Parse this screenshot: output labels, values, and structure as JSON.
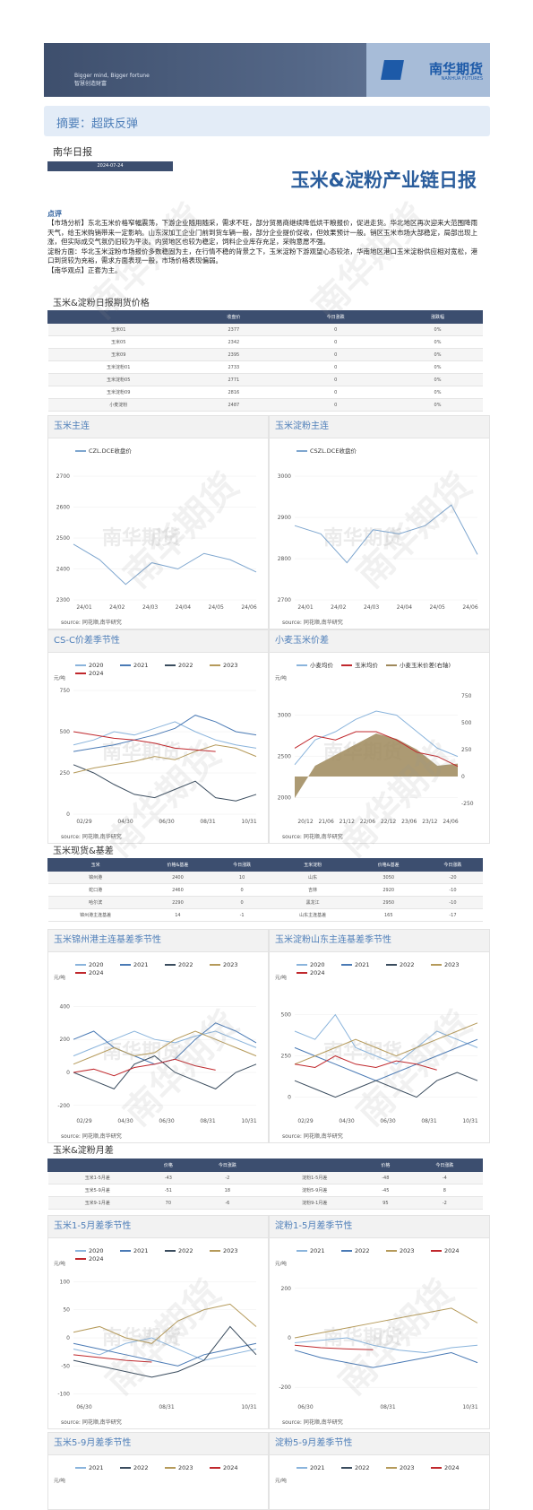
{
  "banner": {
    "slogan_en": "Bigger mind, Bigger fortune",
    "slogan_cn": "智慧创造财富",
    "logo_cn": "南华期货",
    "logo_en": "NANHUA FUTURES"
  },
  "summary": "摘要：超跌反弹",
  "daily_label": "南华日报",
  "date": "2024-07-24",
  "main_title": "玉米&淀粉产业链日报",
  "comment_head": "点评",
  "comment": "【市场分析】东北玉米价格窄幅震荡，下游企业随用随采，需求不旺，部分贸易商继续降低烘干粮报价，促进走货。华北地区再次迎来大范围降雨天气，给玉米购销带来一定影响。山东深加工企业门前到货车辆一般，部分企业提价促收，但效果预计一般。销区玉米市场大部稳定，局部出现上涨，但实际成交气氛仍旧较为平淡。内贸地区也较为稳定，饲料企业库存充足，采购意愿不强。\n淀粉方面：华北玉米淀粉市场报价多数稳固为主，在行情不稳的背景之下，玉米淀粉下游观望心态较浓，华南地区港口玉米淀粉供应相对宽松，港口到货较为充裕，需求方面表现一般，市场价格表现偏弱。\n【南华观点】正套为主。",
  "futures": {
    "title": "玉米&淀粉日报期货价格",
    "headers": [
      "",
      "收盘价",
      "今日涨跌",
      "涨跌幅"
    ],
    "rows": [
      [
        "玉米01",
        "2377",
        "0",
        "0%"
      ],
      [
        "玉米05",
        "2342",
        "0",
        "0%"
      ],
      [
        "玉米09",
        "2395",
        "0",
        "0%"
      ],
      [
        "玉米淀粉01",
        "2733",
        "0",
        "0%"
      ],
      [
        "玉米淀粉05",
        "2771",
        "0",
        "0%"
      ],
      [
        "玉米淀粉09",
        "2816",
        "0",
        "0%"
      ],
      [
        "小麦淀粉",
        "2487",
        "0",
        "0%"
      ]
    ]
  },
  "spot": {
    "title": "玉米现货&基差",
    "headers": [
      "玉米",
      "价格&基差",
      "今日涨跌",
      "玉米淀粉",
      "价格&基差",
      "今日涨跌"
    ],
    "rows": [
      [
        "锦州港",
        "2400",
        "10",
        "山东",
        "3050",
        "-20"
      ],
      [
        "蛇口港",
        "2460",
        "0",
        "吉林",
        "2920",
        "-10"
      ],
      [
        "哈尔滨",
        "2290",
        "0",
        "黑龙江",
        "2950",
        "-10"
      ],
      [
        "锦州港主连基差",
        "14",
        "-1",
        "山东主连基差",
        "165",
        "-17"
      ]
    ]
  },
  "spread_table": {
    "title": "玉米&淀粉月差",
    "headers": [
      "",
      "价格",
      "今日涨跌",
      "",
      "价格",
      "今日涨跌"
    ],
    "rows": [
      [
        "玉米1-5月差",
        "-43",
        "-2",
        "淀粉1-5月差",
        "-48",
        "-4"
      ],
      [
        "玉米5-9月差",
        "-51",
        "18",
        "淀粉5-9月差",
        "-45",
        "8"
      ],
      [
        "玉米9-1月差",
        "70",
        "-6",
        "淀粉9-1月差",
        "95",
        "-2"
      ]
    ]
  },
  "source": "source: 同花顺,南华研究",
  "watermark": "南华期货",
  "panels": {
    "p1": {
      "title": "玉米主连"
    },
    "p2": {
      "title": "玉米淀粉主连"
    },
    "p3": {
      "title": "CS-C价差季节性"
    },
    "p4": {
      "title": "小麦玉米价差"
    },
    "p5": {
      "title": "玉米锦州港主连基差季节性"
    },
    "p6": {
      "title": "玉米淀粉山东主连基差季节性"
    },
    "p7": {
      "title": "玉米1-5月差季节性"
    },
    "p8": {
      "title": "淀粉1-5月差季节性"
    },
    "p9": {
      "title": "玉米5-9月差季节性"
    },
    "p10": {
      "title": "淀粉5-9月差季节性"
    }
  },
  "chart_data": [
    {
      "type": "line",
      "id": "p1",
      "series": [
        {
          "name": "CZL.DCE收盘价",
          "color": "#7ea6cf",
          "x": [
            "23/12",
            "24/01",
            "24/02",
            "24/03",
            "24/04",
            "24/05",
            "24/06",
            "24/07"
          ],
          "values": [
            2480,
            2430,
            2350,
            2420,
            2400,
            2450,
            2430,
            2390
          ]
        }
      ],
      "ylim": [
        2300,
        2700
      ],
      "yticks": [
        2300,
        2400,
        2500,
        2600,
        2700
      ],
      "xticks": [
        "24/01",
        "24/02",
        "24/03",
        "24/04",
        "24/05",
        "24/06"
      ]
    },
    {
      "type": "line",
      "id": "p2",
      "series": [
        {
          "name": "CSZL.DCE收盘价",
          "color": "#7ea6cf",
          "x": [
            "23/12",
            "24/01",
            "24/02",
            "24/03",
            "24/04",
            "24/05",
            "24/06",
            "24/07"
          ],
          "values": [
            2880,
            2860,
            2790,
            2870,
            2860,
            2880,
            2930,
            2810
          ]
        }
      ],
      "ylim": [
        2700,
        3000
      ],
      "yticks": [
        2700,
        2800,
        2900,
        3000
      ],
      "xticks": [
        "24/01",
        "24/02",
        "24/03",
        "24/04",
        "24/05",
        "24/06"
      ]
    },
    {
      "type": "line",
      "id": "p3",
      "ylabel": "元/吨",
      "ylim": [
        0,
        750
      ],
      "yticks": [
        0,
        250,
        500,
        750
      ],
      "xticks": [
        "02/29",
        "04/30",
        "06/30",
        "08/31",
        "10/31"
      ],
      "series": [
        {
          "name": "2020",
          "color": "#8ab4dc",
          "values": [
            420,
            450,
            500,
            480,
            520,
            560,
            500,
            450,
            420,
            400
          ]
        },
        {
          "name": "2021",
          "color": "#4a7ab5",
          "values": [
            380,
            400,
            420,
            450,
            480,
            520,
            600,
            560,
            500,
            480
          ]
        },
        {
          "name": "2022",
          "color": "#3a4c5e",
          "values": [
            300,
            250,
            180,
            120,
            100,
            150,
            200,
            100,
            80,
            120
          ]
        },
        {
          "name": "2023",
          "color": "#b59a5a",
          "values": [
            250,
            280,
            300,
            320,
            350,
            330,
            380,
            420,
            400,
            350
          ]
        },
        {
          "name": "2024",
          "color": "#c0282d",
          "values": [
            500,
            480,
            460,
            450,
            430,
            400,
            390,
            380,
            null,
            null
          ]
        }
      ]
    },
    {
      "type": "line",
      "id": "p4",
      "ylabel": "元/吨",
      "ylim": [
        1800,
        3300
      ],
      "yticks": [
        2000,
        2500,
        3000
      ],
      "y2lim": [
        -350,
        800
      ],
      "y2ticks": [
        -250,
        0,
        250,
        500,
        750
      ],
      "xticks": [
        "20/12",
        "21/06",
        "21/12",
        "22/06",
        "22/12",
        "23/06",
        "23/12",
        "24/06"
      ],
      "series": [
        {
          "name": "小麦均价",
          "color": "#8ab4dc",
          "values": [
            2400,
            2700,
            2800,
            2950,
            3050,
            3000,
            2800,
            2600,
            2500
          ]
        },
        {
          "name": "玉米均价",
          "color": "#c0282d",
          "values": [
            2600,
            2750,
            2700,
            2800,
            2800,
            2700,
            2550,
            2500,
            2380
          ]
        },
        {
          "name": "小麦玉米价差(右轴)",
          "color": "#9e885a",
          "type": "area",
          "values": [
            -200,
            100,
            200,
            300,
            400,
            350,
            250,
            100,
            120
          ]
        }
      ]
    },
    {
      "type": "line",
      "id": "p5",
      "ylabel": "元/吨",
      "ylim": [
        -250,
        500
      ],
      "yticks": [
        -200,
        0,
        200,
        400
      ],
      "xticks": [
        "02/29",
        "04/30",
        "06/30",
        "08/31",
        "10/31"
      ],
      "series": [
        {
          "name": "2020",
          "color": "#8ab4dc",
          "values": [
            100,
            150,
            200,
            250,
            200,
            180,
            220,
            250,
            200,
            150
          ]
        },
        {
          "name": "2021",
          "color": "#4a7ab5",
          "values": [
            200,
            250,
            150,
            100,
            50,
            80,
            200,
            300,
            250,
            180
          ]
        },
        {
          "name": "2022",
          "color": "#3a4c5e",
          "values": [
            0,
            -50,
            -100,
            50,
            100,
            0,
            -50,
            -100,
            0,
            50
          ]
        },
        {
          "name": "2023",
          "color": "#b59a5a",
          "values": [
            50,
            100,
            150,
            100,
            120,
            200,
            250,
            200,
            150,
            100
          ]
        },
        {
          "name": "2024",
          "color": "#c0282d",
          "values": [
            0,
            20,
            -20,
            30,
            50,
            80,
            40,
            14,
            null,
            null
          ]
        }
      ]
    },
    {
      "type": "line",
      "id": "p6",
      "ylabel": "元/吨",
      "ylim": [
        -100,
        650
      ],
      "yticks": [
        0,
        250,
        500
      ],
      "xticks": [
        "02/29",
        "04/30",
        "06/30",
        "08/31",
        "10/31"
      ],
      "series": [
        {
          "name": "2020",
          "color": "#8ab4dc",
          "values": [
            400,
            350,
            500,
            300,
            250,
            200,
            300,
            400,
            350,
            300
          ]
        },
        {
          "name": "2021",
          "color": "#4a7ab5",
          "values": [
            300,
            250,
            200,
            150,
            100,
            150,
            200,
            250,
            300,
            350
          ]
        },
        {
          "name": "2022",
          "color": "#3a4c5e",
          "values": [
            100,
            50,
            0,
            50,
            100,
            50,
            0,
            100,
            150,
            100
          ]
        },
        {
          "name": "2023",
          "color": "#b59a5a",
          "values": [
            200,
            250,
            300,
            350,
            300,
            250,
            300,
            350,
            400,
            450
          ]
        },
        {
          "name": "2024",
          "color": "#c0282d",
          "values": [
            200,
            180,
            250,
            200,
            180,
            220,
            200,
            165,
            null,
            null
          ]
        }
      ]
    },
    {
      "type": "line",
      "id": "p7",
      "ylabel": "元/吨",
      "ylim": [
        -110,
        110
      ],
      "yticks": [
        -100,
        -50,
        0,
        50,
        100
      ],
      "xticks": [
        "06/30",
        "08/31",
        "10/31"
      ],
      "series": [
        {
          "name": "2020",
          "color": "#8ab4dc",
          "values": [
            -20,
            -30,
            -10,
            0,
            -20,
            -40,
            -30,
            -20
          ]
        },
        {
          "name": "2021",
          "color": "#4a7ab5",
          "values": [
            -10,
            -20,
            -30,
            -40,
            -50,
            -30,
            -20,
            -10
          ]
        },
        {
          "name": "2022",
          "color": "#3a4c5e",
          "values": [
            -40,
            -50,
            -60,
            -70,
            -60,
            -40,
            20,
            -30
          ]
        },
        {
          "name": "2023",
          "color": "#b59a5a",
          "values": [
            10,
            20,
            0,
            -10,
            30,
            50,
            60,
            20
          ]
        },
        {
          "name": "2024",
          "color": "#c0282d",
          "values": [
            -30,
            -35,
            -40,
            -43,
            null,
            null,
            null,
            null
          ]
        }
      ]
    },
    {
      "type": "line",
      "id": "p8",
      "ylabel": "元/吨",
      "ylim": [
        -250,
        250
      ],
      "yticks": [
        -200,
        0,
        200
      ],
      "xticks": [
        "06/30",
        "08/31",
        "10/31"
      ],
      "series": [
        {
          "name": "2021",
          "color": "#8ab4dc",
          "values": [
            -20,
            -10,
            0,
            -30,
            -50,
            -60,
            -40,
            -30
          ]
        },
        {
          "name": "2022",
          "color": "#4a7ab5",
          "values": [
            -50,
            -80,
            -100,
            -120,
            -100,
            -80,
            -60,
            -100
          ]
        },
        {
          "name": "2023",
          "color": "#b59a5a",
          "values": [
            0,
            20,
            40,
            60,
            80,
            100,
            120,
            60
          ]
        },
        {
          "name": "2024",
          "color": "#c0282d",
          "values": [
            -30,
            -40,
            -45,
            -48,
            null,
            null,
            null,
            null
          ]
        }
      ]
    },
    {
      "type": "line",
      "id": "p9",
      "ylabel": "元/吨",
      "series": [
        {
          "name": "2021",
          "color": "#8ab4dc"
        },
        {
          "name": "2022",
          "color": "#3a4c5e"
        },
        {
          "name": "2023",
          "color": "#b59a5a"
        },
        {
          "name": "2024",
          "color": "#c0282d"
        }
      ]
    },
    {
      "type": "line",
      "id": "p10",
      "ylabel": "元/吨",
      "series": [
        {
          "name": "2021",
          "color": "#8ab4dc"
        },
        {
          "name": "2022",
          "color": "#3a4c5e"
        },
        {
          "name": "2023",
          "color": "#b59a5a"
        },
        {
          "name": "2024",
          "color": "#c0282d"
        }
      ]
    }
  ]
}
